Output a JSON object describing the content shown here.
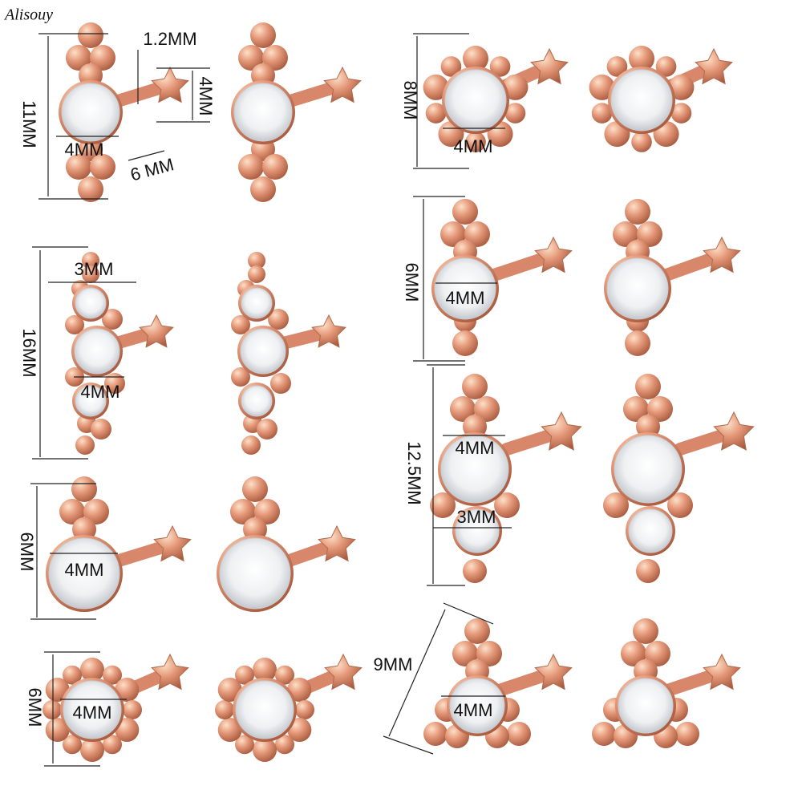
{
  "watermark": "Alisouy",
  "annotations": [
    "1.2MM",
    "4MM",
    "11MM",
    "4MM",
    "6 MM",
    "8MM",
    "4MM",
    "3MM",
    "16MM",
    "4MM",
    "6MM",
    "4MM",
    "12.5MM",
    "4MM",
    "3MM",
    "6MM",
    "4MM",
    "6MM",
    "4MM",
    "9MM",
    "4MM"
  ]
}
